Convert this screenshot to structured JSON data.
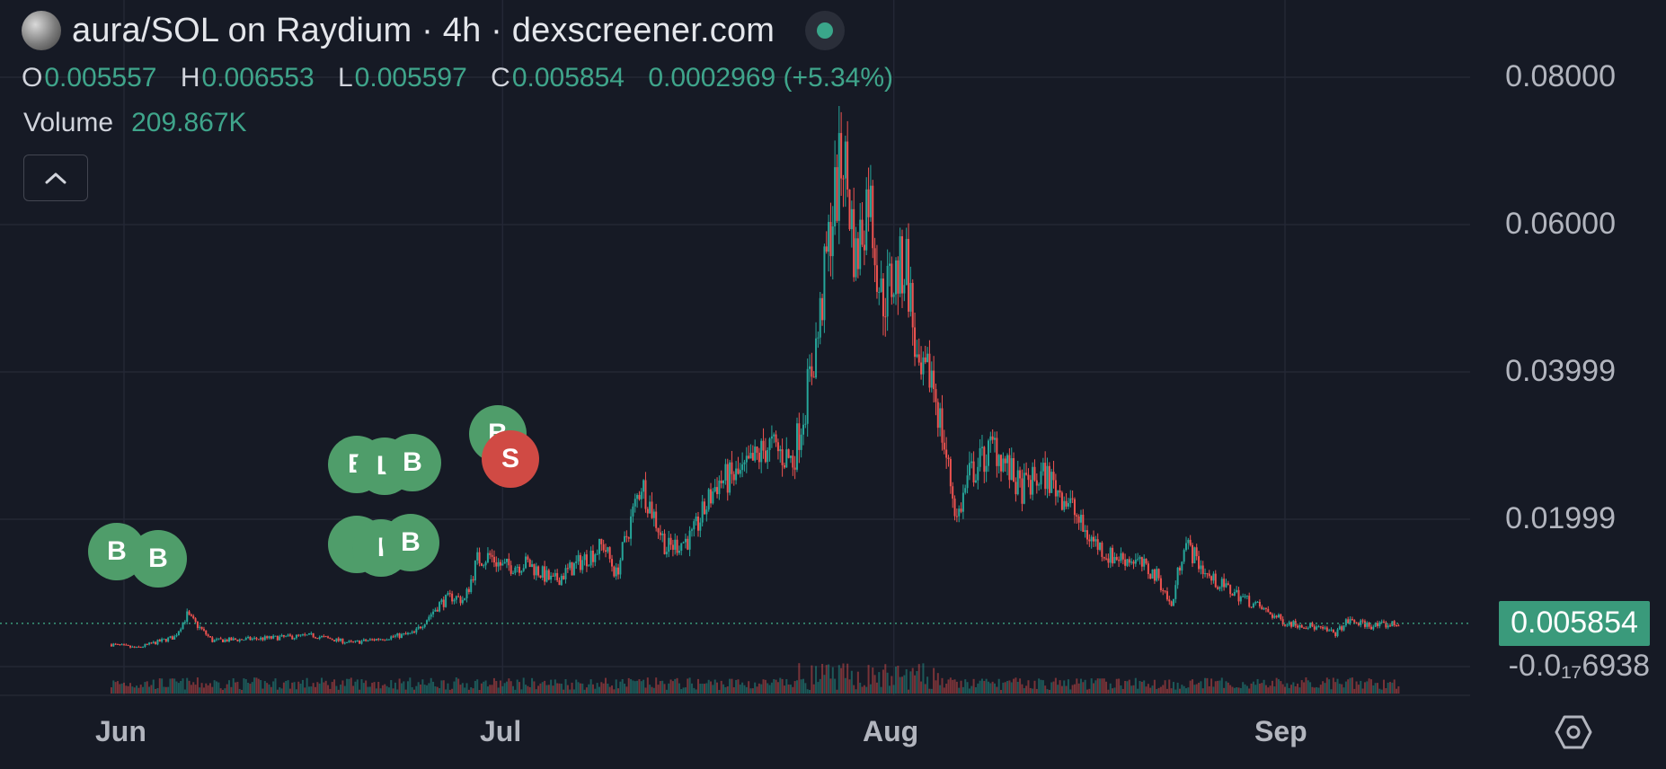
{
  "header": {
    "title": "aura/SOL on Raydium · 4h · dexscreener.com",
    "status_icon": "live-dot-icon",
    "accent_color": "#3aa68a"
  },
  "ohlc": {
    "o_label": "O",
    "o_value": "0.005557",
    "h_label": "H",
    "h_value": "0.006553",
    "l_label": "L",
    "l_value": "0.005597",
    "c_label": "C",
    "c_value": "0.005854",
    "change": "0.0002969 (+5.34%)"
  },
  "volume": {
    "label": "Volume",
    "value": "209.867K"
  },
  "price_axis": {
    "labels": [
      "0.08000",
      "0.06000",
      "0.03999",
      "0.01999",
      "-0.0₁₇6938"
    ],
    "last_price": "0.005854"
  },
  "time_axis": {
    "labels": [
      "Jun",
      "Jul",
      "Aug",
      "Sep"
    ]
  },
  "colors": {
    "up": "#26a69a",
    "down": "#ef5350",
    "background": "#161a25",
    "buy": "#4f9d6a",
    "sell": "#d04a44"
  },
  "markers": [
    {
      "text": "B",
      "type": "buy"
    },
    {
      "text": "B",
      "type": "buy"
    },
    {
      "text": "E",
      "type": "buy"
    },
    {
      "text": "L",
      "type": "buy"
    },
    {
      "text": "B",
      "type": "buy"
    },
    {
      "text": "",
      "type": "buy"
    },
    {
      "text": "I",
      "type": "buy"
    },
    {
      "text": "B",
      "type": "buy"
    },
    {
      "text": "B",
      "type": "buy"
    },
    {
      "text": "S",
      "type": "sell"
    }
  ],
  "chart_data": {
    "type": "line",
    "title": "aura/SOL on Raydium · 4h",
    "xlabel": "",
    "ylabel": "",
    "ylim": [
      -0.0057,
      0.083
    ],
    "x_ticks": [
      "Jun",
      "Jul",
      "Aug",
      "Sep"
    ],
    "y_ticks": [
      0.08,
      0.06,
      0.03999,
      0.01999
    ],
    "last_price": 0.005854,
    "grid": true,
    "series": [
      {
        "x": [
          "2024-05-31",
          "2024-06-02",
          "2024-06-05",
          "2024-06-06",
          "2024-06-08",
          "2024-06-12",
          "2024-06-16",
          "2024-06-19",
          "2024-06-21",
          "2024-06-24",
          "2024-06-26",
          "2024-06-27",
          "2024-06-28",
          "2024-06-29",
          "2024-06-30",
          "2024-07-01",
          "2024-07-03",
          "2024-07-05",
          "2024-07-07",
          "2024-07-09",
          "2024-07-10",
          "2024-07-12",
          "2024-07-14",
          "2024-07-16",
          "2024-07-18",
          "2024-07-20",
          "2024-07-22",
          "2024-07-24",
          "2024-07-25",
          "2024-07-26",
          "2024-07-27",
          "2024-07-28",
          "2024-07-29",
          "2024-07-30",
          "2024-07-31",
          "2024-08-02",
          "2024-08-03",
          "2024-08-04",
          "2024-08-06",
          "2024-08-07",
          "2024-08-09",
          "2024-08-11",
          "2024-08-13",
          "2024-08-15",
          "2024-08-16",
          "2024-08-18",
          "2024-08-20",
          "2024-08-22",
          "2024-08-23",
          "2024-08-24",
          "2024-08-26",
          "2024-08-29",
          "2024-09-01",
          "2024-09-03",
          "2024-09-05",
          "2024-09-06",
          "2024-09-08",
          "2024-09-10"
        ],
        "y": [
          0.003,
          0.0025,
          0.004,
          0.007,
          0.0035,
          0.0038,
          0.0042,
          0.0032,
          0.0037,
          0.0045,
          0.0085,
          0.0095,
          0.009,
          0.0145,
          0.015,
          0.0135,
          0.014,
          0.0115,
          0.014,
          0.0165,
          0.0125,
          0.025,
          0.016,
          0.0175,
          0.025,
          0.026,
          0.03,
          0.028,
          0.036,
          0.045,
          0.06,
          0.07,
          0.055,
          0.065,
          0.05,
          0.055,
          0.038,
          0.04,
          0.02,
          0.026,
          0.03,
          0.024,
          0.026,
          0.022,
          0.0185,
          0.015,
          0.0145,
          0.012,
          0.008,
          0.017,
          0.012,
          0.009,
          0.006,
          0.0055,
          0.0045,
          0.0062,
          0.0055,
          0.0058
        ]
      }
    ]
  }
}
